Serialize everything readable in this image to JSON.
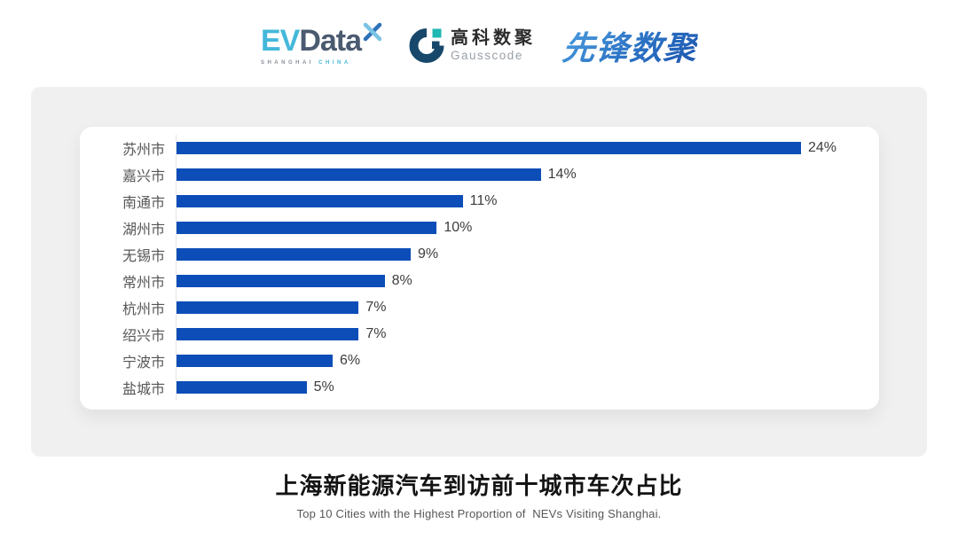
{
  "header": {
    "evdata_logo": {
      "ev": "EV",
      "data": "Data",
      "sub_shanghai": "SHANGHAI",
      "sub_china": "CHINA"
    },
    "gausscode_logo": {
      "name_cn": "高科数聚",
      "name_en": "Gausscode"
    },
    "xianfeng_logo": {
      "text": "先锋数聚"
    }
  },
  "chart_data": {
    "type": "bar",
    "orientation": "horizontal",
    "title": "上海新能源汽车到访前十城市车次占比",
    "subtitle": "Top 10 Cities with the Highest Proportion of  NEVs Visiting Shanghai.",
    "categories": [
      "苏州市",
      "嘉兴市",
      "南通市",
      "湖州市",
      "无锡市",
      "常州市",
      "杭州市",
      "绍兴市",
      "宁波市",
      "盐城市"
    ],
    "values": [
      24,
      14,
      11,
      10,
      9,
      8,
      7,
      7,
      6,
      5
    ],
    "value_suffix": "%",
    "xlim": [
      0,
      24
    ],
    "grid": false,
    "legend": false,
    "bar_color": "#0D4DB8",
    "axis_line_color": "#e4e4e4",
    "label_color": "#565656",
    "value_color": "#3d3d3d"
  },
  "caption": {
    "title": "上海新能源汽车到访前十城市车次占比",
    "subtitle": "Top 10 Cities with the Highest Proportion of  NEVs Visiting Shanghai."
  },
  "colors": {
    "card_background": "#f0f0f0",
    "panel_background": "#ffffff",
    "evdata_cyan": "#45B8DA",
    "evdata_slate": "#4A5A70",
    "gausscode_navy": "#17486B",
    "gausscode_teal": "#20B8B2",
    "xianfeng_blue": "#2878CE"
  }
}
